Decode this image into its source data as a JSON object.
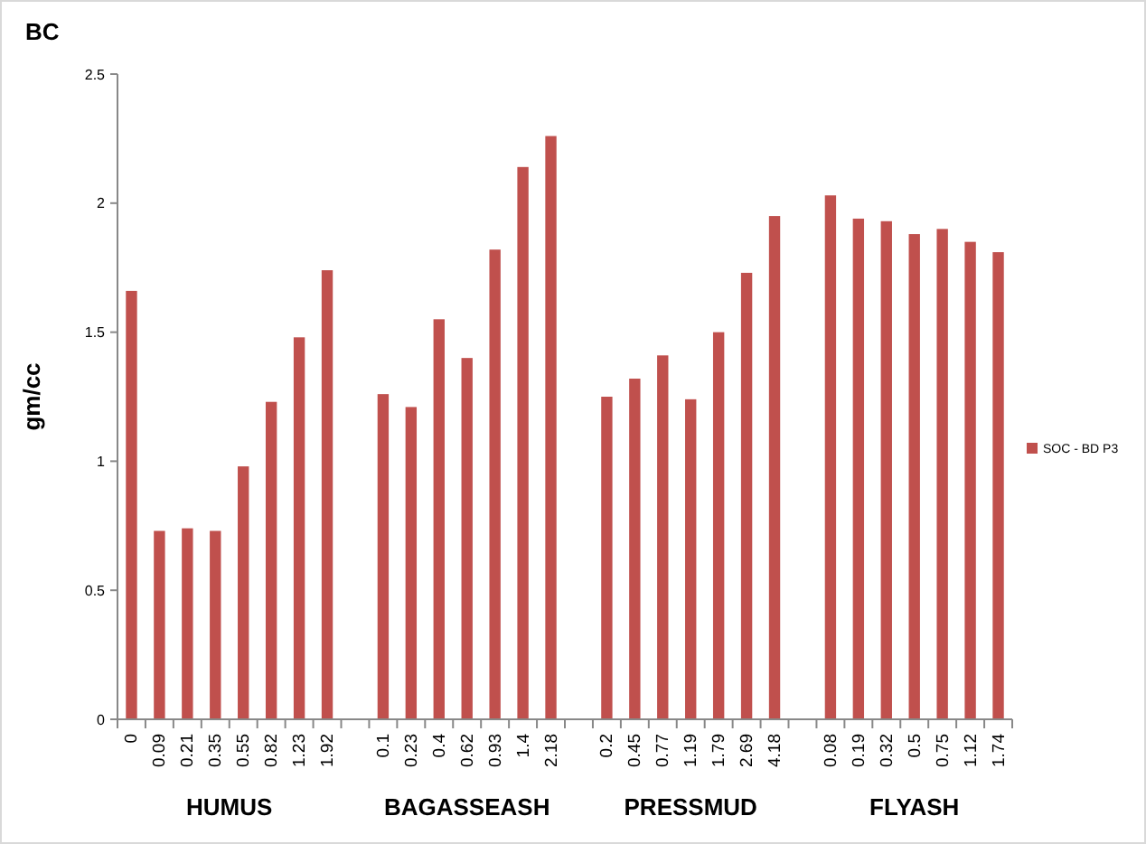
{
  "chart_data": {
    "type": "bar",
    "title": "BC",
    "ylabel": "gm/cc",
    "categories": [
      "0",
      "0.09",
      "0.21",
      "0.35",
      "0.55",
      "0.82",
      "1.23",
      "1.92",
      null,
      "0.1",
      "0.23",
      "0.4",
      "0.62",
      "0.93",
      "1.4",
      "2.18",
      null,
      "0.2",
      "0.45",
      "0.77",
      "1.19",
      "1.79",
      "2.69",
      "4.18",
      null,
      "0.08",
      "0.19",
      "0.32",
      "0.5",
      "0.75",
      "1.12",
      "1.74"
    ],
    "series": [
      {
        "name": "SOC - BD P3",
        "color": "#c0504d",
        "values": [
          1.66,
          0.73,
          0.74,
          0.73,
          0.98,
          1.23,
          1.48,
          1.74,
          null,
          1.26,
          1.21,
          1.55,
          1.4,
          1.82,
          2.14,
          2.26,
          null,
          1.25,
          1.32,
          1.41,
          1.24,
          1.5,
          1.73,
          1.95,
          null,
          2.03,
          1.94,
          1.93,
          1.88,
          1.9,
          1.85,
          1.81
        ]
      }
    ],
    "ylim": [
      0,
      2.5
    ],
    "yticks": [
      0,
      0.5,
      1,
      1.5,
      2,
      2.5
    ],
    "grid": false,
    "legend": "right",
    "annotations": [
      "HUMUS",
      "BAGASSEASH",
      "PRESSMUD",
      "FLYASH"
    ]
  }
}
